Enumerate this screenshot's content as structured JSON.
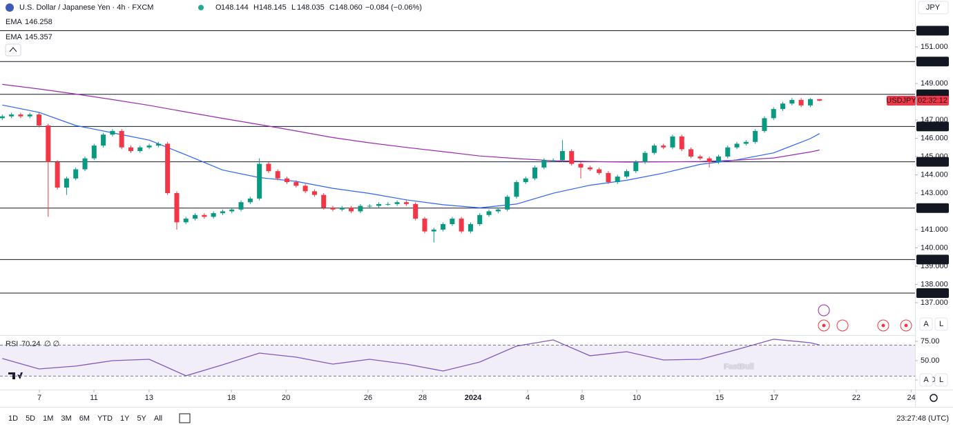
{
  "chart_data": {
    "type": "candlestick",
    "title": "U.S. Dollar / Japanese Yen · 4h · FXCM",
    "ohlc": [
      {
        "key": "O",
        "value": "148.144"
      },
      {
        "key": "H",
        "value": "148.145"
      },
      {
        "key": "L",
        "value": "148.035"
      },
      {
        "key": "C",
        "value": "148.060"
      }
    ],
    "change": "−0.084 (−0.06%)",
    "currency": "JPY",
    "up_color": "#089981",
    "down_color": "#f23645",
    "x": [
      0,
      1,
      2,
      3,
      4,
      5,
      6,
      7,
      8,
      9,
      10,
      11,
      12,
      13,
      14,
      15,
      16,
      17,
      18,
      19,
      20,
      21,
      22,
      23,
      24,
      25,
      26,
      27,
      28,
      29,
      30,
      31,
      32,
      33,
      34,
      35,
      36,
      37,
      38,
      39,
      40,
      41,
      42,
      43,
      44,
      45,
      46,
      47,
      48,
      49,
      50,
      51,
      52,
      53,
      54,
      55,
      56,
      57,
      58,
      59,
      60,
      61,
      62,
      63,
      64,
      65,
      66,
      67,
      68,
      69,
      70,
      71,
      72,
      73,
      74,
      75,
      76,
      77,
      78,
      79,
      80,
      81,
      82,
      83,
      84,
      85,
      86,
      87,
      88,
      89
    ],
    "open": [
      147.1,
      147.2,
      147.3,
      147.2,
      147.3,
      146.7,
      144.7,
      143.3,
      143.8,
      144.3,
      144.9,
      145.6,
      146.2,
      146.4,
      145.5,
      145.3,
      145.5,
      145.6,
      145.7,
      143.0,
      141.4,
      141.6,
      141.8,
      141.7,
      141.9,
      142.0,
      142.1,
      142.5,
      142.7,
      144.6,
      144.2,
      143.8,
      143.6,
      143.4,
      143.1,
      142.9,
      142.2,
      142.1,
      142.2,
      142.0,
      142.3,
      142.3,
      142.4,
      142.4,
      142.5,
      142.4,
      141.6,
      140.9,
      141.0,
      141.3,
      141.6,
      140.9,
      141.3,
      141.8,
      142.0,
      142.1,
      142.8,
      143.6,
      143.8,
      144.4,
      144.8,
      144.8,
      145.3,
      144.6,
      144.4,
      144.3,
      144.1,
      143.6,
      143.9,
      144.2,
      144.7,
      145.2,
      145.6,
      145.5,
      146.1,
      145.4,
      145.0,
      144.9,
      144.7,
      145.0,
      145.5,
      145.7,
      145.8,
      146.4,
      147.1,
      147.6,
      147.9,
      148.1,
      147.8,
      148.144
    ],
    "high": [
      147.3,
      147.4,
      147.4,
      147.4,
      147.4,
      146.8,
      144.8,
      143.9,
      144.4,
      145.0,
      145.7,
      146.3,
      146.5,
      146.5,
      145.6,
      145.6,
      145.7,
      145.8,
      145.8,
      143.1,
      141.7,
      141.9,
      141.9,
      142.0,
      142.1,
      142.2,
      142.6,
      142.8,
      144.9,
      144.7,
      144.3,
      143.9,
      143.7,
      143.5,
      143.2,
      143.0,
      142.3,
      142.3,
      142.3,
      142.4,
      142.4,
      142.5,
      142.5,
      142.6,
      142.6,
      142.5,
      141.7,
      141.1,
      141.4,
      141.7,
      141.7,
      141.4,
      141.9,
      142.1,
      142.2,
      142.9,
      143.7,
      143.9,
      144.5,
      144.9,
      144.9,
      145.9,
      145.4,
      144.7,
      144.5,
      144.4,
      144.2,
      144.0,
      144.3,
      144.8,
      145.3,
      145.7,
      145.7,
      146.2,
      146.2,
      145.5,
      145.1,
      145.0,
      145.1,
      145.6,
      145.8,
      145.9,
      146.5,
      147.2,
      147.7,
      148.0,
      148.2,
      148.2,
      148.2,
      148.145
    ],
    "low": [
      147.0,
      147.1,
      147.1,
      147.1,
      146.6,
      141.7,
      143.2,
      142.9,
      143.7,
      144.2,
      144.8,
      145.5,
      146.1,
      145.4,
      145.2,
      145.2,
      145.4,
      145.5,
      142.9,
      141.0,
      141.3,
      141.5,
      141.6,
      141.6,
      141.8,
      141.9,
      142.0,
      142.4,
      142.6,
      144.1,
      143.7,
      143.5,
      143.3,
      143.0,
      142.8,
      142.1,
      142.0,
      142.0,
      141.9,
      141.9,
      142.2,
      142.2,
      142.3,
      142.3,
      142.3,
      141.5,
      140.8,
      140.3,
      140.9,
      141.2,
      140.8,
      140.8,
      141.2,
      141.7,
      141.9,
      142.0,
      142.7,
      143.5,
      143.7,
      144.3,
      144.7,
      144.7,
      144.5,
      143.8,
      144.2,
      144.0,
      143.5,
      143.5,
      143.8,
      144.1,
      144.6,
      145.1,
      145.4,
      145.4,
      145.3,
      144.9,
      144.8,
      144.4,
      144.6,
      144.9,
      145.4,
      145.6,
      145.7,
      146.3,
      147.0,
      147.5,
      147.8,
      147.7,
      147.7,
      148.035
    ],
    "close": [
      147.2,
      147.3,
      147.2,
      147.3,
      146.7,
      144.7,
      143.3,
      143.8,
      144.3,
      144.9,
      145.6,
      146.2,
      146.4,
      145.5,
      145.3,
      145.5,
      145.6,
      145.7,
      143.0,
      141.4,
      141.6,
      141.8,
      141.7,
      141.9,
      142.0,
      142.1,
      142.5,
      142.7,
      144.6,
      144.2,
      143.8,
      143.6,
      143.4,
      143.1,
      142.9,
      142.2,
      142.1,
      142.2,
      142.0,
      142.3,
      142.3,
      142.4,
      142.4,
      142.5,
      142.4,
      141.6,
      140.9,
      141.0,
      141.3,
      141.6,
      140.9,
      141.3,
      141.8,
      142.0,
      142.1,
      142.8,
      143.6,
      143.8,
      144.4,
      144.8,
      144.8,
      145.3,
      144.6,
      144.4,
      144.3,
      144.1,
      143.6,
      143.9,
      144.2,
      144.7,
      145.2,
      145.6,
      145.5,
      146.1,
      145.4,
      145.0,
      144.9,
      144.7,
      145.0,
      145.5,
      145.7,
      145.8,
      146.4,
      147.1,
      147.6,
      147.9,
      148.1,
      147.8,
      148.144,
      148.06
    ],
    "xlim": [
      -0.25,
      99.4
    ],
    "xticks": [
      {
        "value": 4.04,
        "label": "7"
      },
      {
        "value": 9.98,
        "label": "11"
      },
      {
        "value": 15.99,
        "label": "13"
      },
      {
        "value": 24.95,
        "label": "18"
      },
      {
        "value": 30.9,
        "label": "20"
      },
      {
        "value": 39.84,
        "label": "26"
      },
      {
        "value": 45.78,
        "label": "28"
      },
      {
        "value": 51.27,
        "label": "2024"
      },
      {
        "value": 57.21,
        "label": "4"
      },
      {
        "value": 63.15,
        "label": "8"
      },
      {
        "value": 69.09,
        "label": "10"
      },
      {
        "value": 78.12,
        "label": "15"
      },
      {
        "value": 84.06,
        "label": "17"
      },
      {
        "value": 93.0,
        "label": "22"
      },
      {
        "value": 99.0,
        "label": "24"
      }
    ],
    "ylim": [
      135.26,
      153.57
    ],
    "yticks": [
      {
        "value": 137,
        "label": "137.000"
      },
      {
        "value": 138,
        "label": "138.000"
      },
      {
        "value": 139,
        "label": "139.000"
      },
      {
        "value": 140,
        "label": "140.000"
      },
      {
        "value": 141,
        "label": "141.000"
      },
      {
        "value": 143,
        "label": "143.000"
      },
      {
        "value": 144,
        "label": "144.000"
      },
      {
        "value": 145,
        "label": "145.000"
      },
      {
        "value": 146,
        "label": "146.000"
      },
      {
        "value": 147,
        "label": "147.000"
      },
      {
        "value": 149,
        "label": "149.000"
      },
      {
        "value": 151,
        "label": "151.000"
      }
    ],
    "levels": [
      151.889,
      150.201,
      148.405,
      146.649,
      144.713,
      142.177,
      139.359,
      137.525
    ],
    "last_price": {
      "symbol": "USDJPY",
      "countdown": "02:32:12",
      "color": "#f23645"
    },
    "ema": [
      {
        "name": "EMA",
        "value_label": "146.258",
        "color": "#2962ff",
        "x": [
          0,
          4,
          8,
          12,
          16,
          20,
          24,
          28,
          32,
          36,
          40,
          44,
          48,
          52,
          56,
          60,
          64,
          68,
          72,
          76,
          80,
          84,
          88,
          89
        ],
        "values": [
          147.82,
          147.42,
          146.7,
          146.3,
          145.9,
          145.09,
          144.26,
          143.85,
          143.64,
          143.26,
          142.98,
          142.63,
          142.36,
          142.19,
          142.4,
          142.99,
          143.43,
          143.7,
          144.09,
          144.57,
          144.82,
          145.2,
          145.98,
          146.258
        ]
      },
      {
        "name": "EMA",
        "value_label": "145.357",
        "color": "#9c27b0",
        "x": [
          0,
          4,
          8,
          12,
          16,
          20,
          24,
          28,
          32,
          36,
          40,
          44,
          48,
          52,
          56,
          60,
          64,
          68,
          72,
          76,
          80,
          84,
          88,
          89
        ],
        "values": [
          148.95,
          148.7,
          148.42,
          148.12,
          147.8,
          147.44,
          147.09,
          146.75,
          146.4,
          146.04,
          145.75,
          145.5,
          145.27,
          145.03,
          144.89,
          144.77,
          144.73,
          144.7,
          144.71,
          144.73,
          144.8,
          144.92,
          145.25,
          145.357
        ]
      }
    ],
    "rsi": {
      "name": "RSI",
      "value_label": "70.24",
      "extra": "∅ ∅",
      "color": "#7e57c2",
      "x": [
        0,
        4,
        8,
        12,
        16,
        20,
        24,
        28,
        32,
        36,
        40,
        44,
        48,
        52,
        56,
        60,
        64,
        68,
        72,
        76,
        80,
        84,
        88,
        89
      ],
      "values": [
        52.7,
        39.3,
        42.9,
        50.0,
        51.8,
        30.4,
        44.6,
        59.8,
        54.5,
        45.5,
        51.8,
        45.5,
        36.6,
        48.2,
        68.8,
        76.8,
        56.3,
        61.6,
        50.9,
        51.8,
        64.3,
        77.7,
        73.2,
        70.24
      ],
      "ylim": [
        12.5,
        82.1
      ],
      "yticks": [
        {
          "value": 75,
          "label": "75.00"
        },
        {
          "value": 50,
          "label": "50.00"
        },
        {
          "value": 25,
          "label": "25.00"
        }
      ],
      "band": [
        30,
        70
      ]
    },
    "scale_buttons": [
      "A",
      "L"
    ],
    "range_buttons": [
      "1D",
      "5D",
      "1M",
      "3M",
      "6M",
      "YTD",
      "1Y",
      "5Y",
      "All"
    ],
    "clock": "23:27:48 (UTC)",
    "watermark": "FastBull"
  }
}
